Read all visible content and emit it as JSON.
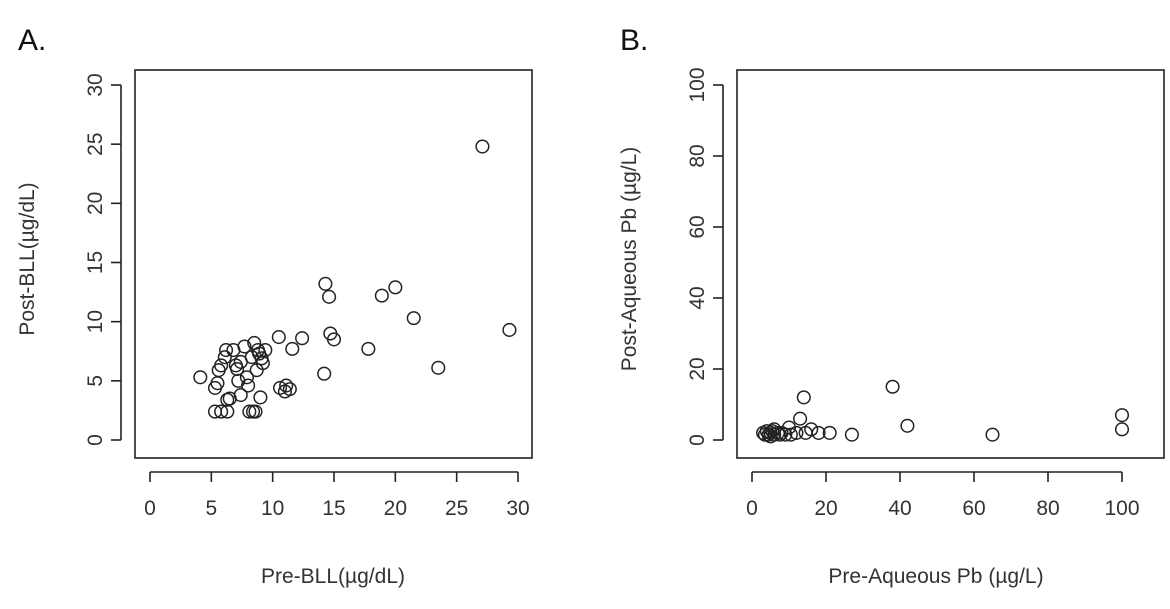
{
  "chart_data": [
    {
      "type": "scatter",
      "panel_label": "A.",
      "xlabel": "Pre-BLL(µg/dL)",
      "ylabel": "Post-BLL(µg/dL)",
      "xlim": [
        0,
        30
      ],
      "ylim": [
        0,
        30
      ],
      "xticks": [
        0,
        5,
        10,
        15,
        20,
        25,
        30
      ],
      "yticks": [
        0,
        5,
        10,
        15,
        20,
        25,
        30
      ],
      "grid": false,
      "points": [
        [
          4.1,
          5.3
        ],
        [
          5.3,
          2.4
        ],
        [
          5.3,
          4.4
        ],
        [
          5.5,
          4.8
        ],
        [
          5.6,
          5.9
        ],
        [
          5.8,
          2.4
        ],
        [
          5.8,
          6.3
        ],
        [
          6.1,
          7.0
        ],
        [
          6.2,
          7.6
        ],
        [
          6.3,
          3.4
        ],
        [
          6.3,
          2.4
        ],
        [
          6.5,
          3.5
        ],
        [
          6.8,
          7.6
        ],
        [
          7.0,
          6.3
        ],
        [
          7.1,
          6.0
        ],
        [
          7.2,
          5.0
        ],
        [
          7.4,
          6.6
        ],
        [
          7.4,
          3.8
        ],
        [
          7.7,
          7.9
        ],
        [
          7.9,
          5.3
        ],
        [
          8.0,
          4.6
        ],
        [
          8.1,
          2.4
        ],
        [
          8.3,
          7.0
        ],
        [
          8.4,
          2.4
        ],
        [
          8.5,
          8.2
        ],
        [
          8.6,
          2.4
        ],
        [
          8.7,
          5.9
        ],
        [
          8.8,
          7.6
        ],
        [
          8.9,
          7.3
        ],
        [
          9.0,
          3.6
        ],
        [
          9.1,
          6.9
        ],
        [
          9.2,
          6.5
        ],
        [
          9.4,
          7.6
        ],
        [
          10.5,
          8.7
        ],
        [
          10.6,
          4.4
        ],
        [
          11.0,
          4.1
        ],
        [
          11.1,
          4.6
        ],
        [
          11.4,
          4.3
        ],
        [
          11.6,
          7.7
        ],
        [
          12.4,
          8.6
        ],
        [
          14.2,
          5.6
        ],
        [
          14.3,
          13.2
        ],
        [
          14.6,
          12.1
        ],
        [
          14.7,
          9.0
        ],
        [
          15.0,
          8.5
        ],
        [
          17.8,
          7.7
        ],
        [
          18.9,
          12.2
        ],
        [
          20.0,
          12.9
        ],
        [
          21.5,
          10.3
        ],
        [
          23.5,
          6.1
        ],
        [
          27.1,
          24.8
        ],
        [
          29.3,
          9.3
        ]
      ]
    },
    {
      "type": "scatter",
      "panel_label": "B.",
      "xlabel": "Pre-Aqueous Pb (µg/L)",
      "ylabel": "Post-Aqueous Pb (µg/L)",
      "xlim": [
        0,
        100
      ],
      "ylim": [
        0,
        100
      ],
      "xticks": [
        0,
        20,
        40,
        60,
        80,
        100
      ],
      "yticks": [
        0,
        20,
        40,
        60,
        80,
        100
      ],
      "grid": false,
      "points": [
        [
          3,
          2
        ],
        [
          3.5,
          1.5
        ],
        [
          4,
          2.5
        ],
        [
          4.5,
          1.5
        ],
        [
          5,
          2
        ],
        [
          5,
          1
        ],
        [
          5.5,
          2.5
        ],
        [
          6,
          1.5
        ],
        [
          6,
          3
        ],
        [
          7,
          2
        ],
        [
          7.5,
          1.5
        ],
        [
          8,
          2
        ],
        [
          9,
          1.5
        ],
        [
          10,
          3.5
        ],
        [
          10.5,
          1.5
        ],
        [
          12,
          2
        ],
        [
          13,
          6
        ],
        [
          14,
          12
        ],
        [
          14.5,
          2
        ],
        [
          16,
          3
        ],
        [
          18,
          2
        ],
        [
          21,
          2
        ],
        [
          27,
          1.5
        ],
        [
          38,
          15
        ],
        [
          42,
          4
        ],
        [
          65,
          1.5
        ],
        [
          100,
          7
        ],
        [
          100,
          3
        ]
      ]
    }
  ]
}
